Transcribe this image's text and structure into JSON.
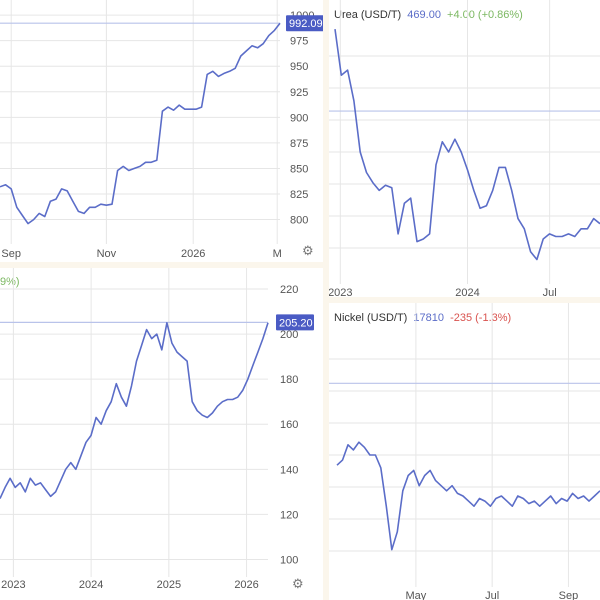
{
  "colors": {
    "line": "#5b6dc8",
    "ref": "#b9c3ea",
    "grid": "#e6e6e6",
    "up": "#7cb862",
    "down": "#d9534f",
    "box": "#4a5bc4"
  },
  "icons": {
    "settings": "gear-icon"
  },
  "chart_data": [
    {
      "type": "line",
      "id": "p1",
      "title": "",
      "xlabel": "",
      "ylabel": "",
      "ylim": [
        780,
        1005
      ],
      "yticks": [
        800,
        825,
        850,
        875,
        900,
        925,
        950,
        975,
        1000
      ],
      "xticks": [
        {
          "label": "Sep",
          "t": 0.04
        },
        {
          "label": "Nov",
          "t": 0.38
        },
        {
          "label": "2026",
          "t": 0.69
        },
        {
          "label": "M",
          "t": 0.99
        }
      ],
      "ref_value": 992.09,
      "price_label": "992.09",
      "values": [
        832,
        834,
        830,
        812,
        804,
        796,
        800,
        806,
        803,
        818,
        820,
        830,
        828,
        818,
        808,
        806,
        812,
        812,
        815,
        814,
        815,
        848,
        852,
        848,
        850,
        852,
        856,
        856,
        858,
        906,
        910,
        907,
        912,
        908,
        908,
        908,
        910,
        942,
        945,
        940,
        943,
        945,
        948,
        960,
        965,
        970,
        968,
        972,
        980,
        985,
        992
      ]
    },
    {
      "type": "line",
      "id": "p2",
      "title": "Urea (USD/T)",
      "price": "469.00",
      "change": "+4.00 (+0.86%)",
      "xlabel": "",
      "ylabel": "",
      "ylim": [
        0,
        1
      ],
      "xticks": [
        {
          "label": "2023",
          "t": 0.02
        },
        {
          "label": "2024",
          "t": 0.5
        },
        {
          "label": "Jul",
          "t": 0.81
        }
      ],
      "ref_value": 0.66,
      "values": [
        0.98,
        0.8,
        0.82,
        0.7,
        0.5,
        0.42,
        0.38,
        0.35,
        0.37,
        0.36,
        0.18,
        0.3,
        0.32,
        0.15,
        0.16,
        0.18,
        0.45,
        0.54,
        0.5,
        0.55,
        0.5,
        0.43,
        0.35,
        0.28,
        0.29,
        0.35,
        0.44,
        0.44,
        0.35,
        0.24,
        0.2,
        0.11,
        0.08,
        0.16,
        0.18,
        0.17,
        0.17,
        0.18,
        0.17,
        0.2,
        0.2,
        0.24,
        0.22
      ]
    },
    {
      "type": "line",
      "id": "p3",
      "title": "",
      "xlabel": "",
      "ylabel": "",
      "ylim": [
        94,
        224
      ],
      "yticks": [
        100,
        120,
        140,
        160,
        180,
        200,
        220
      ],
      "xticks": [
        {
          "label": "2023",
          "t": 0.05
        },
        {
          "label": "2024",
          "t": 0.34
        },
        {
          "label": "2025",
          "t": 0.63
        },
        {
          "label": "2026",
          "t": 0.92
        }
      ],
      "ref_value": 205.2,
      "price_label": "205.20",
      "partial_text": "9%)",
      "values": [
        127,
        132,
        136,
        132,
        134,
        130,
        136,
        133,
        134,
        131,
        128,
        130,
        135,
        140,
        143,
        140,
        146,
        152,
        155,
        163,
        160,
        166,
        170,
        178,
        172,
        168,
        177,
        188,
        195,
        202,
        198,
        200,
        193,
        205,
        196,
        192,
        190,
        188,
        170,
        166,
        164,
        163,
        165,
        168,
        170,
        171,
        171,
        172,
        175,
        180,
        186,
        192,
        198,
        205
      ]
    },
    {
      "type": "line",
      "id": "p4",
      "title": "Nickel (USD/T)",
      "price": "17810",
      "change": "-235 (-1.3%)",
      "xlabel": "",
      "ylabel": "",
      "ylim": [
        0,
        1
      ],
      "xticks": [
        {
          "label": "May",
          "t": 0.3
        },
        {
          "label": "Jul",
          "t": 0.59
        },
        {
          "label": "Sep",
          "t": 0.88
        }
      ],
      "ref_value": 0.78,
      "values": [
        0.46,
        0.48,
        0.54,
        0.52,
        0.55,
        0.53,
        0.5,
        0.5,
        0.45,
        0.3,
        0.13,
        0.2,
        0.36,
        0.42,
        0.44,
        0.38,
        0.42,
        0.44,
        0.4,
        0.38,
        0.36,
        0.38,
        0.35,
        0.34,
        0.32,
        0.3,
        0.33,
        0.32,
        0.3,
        0.33,
        0.34,
        0.32,
        0.3,
        0.34,
        0.33,
        0.31,
        0.32,
        0.3,
        0.32,
        0.34,
        0.31,
        0.33,
        0.32,
        0.35,
        0.33,
        0.34,
        0.32,
        0.34,
        0.36
      ]
    }
  ]
}
